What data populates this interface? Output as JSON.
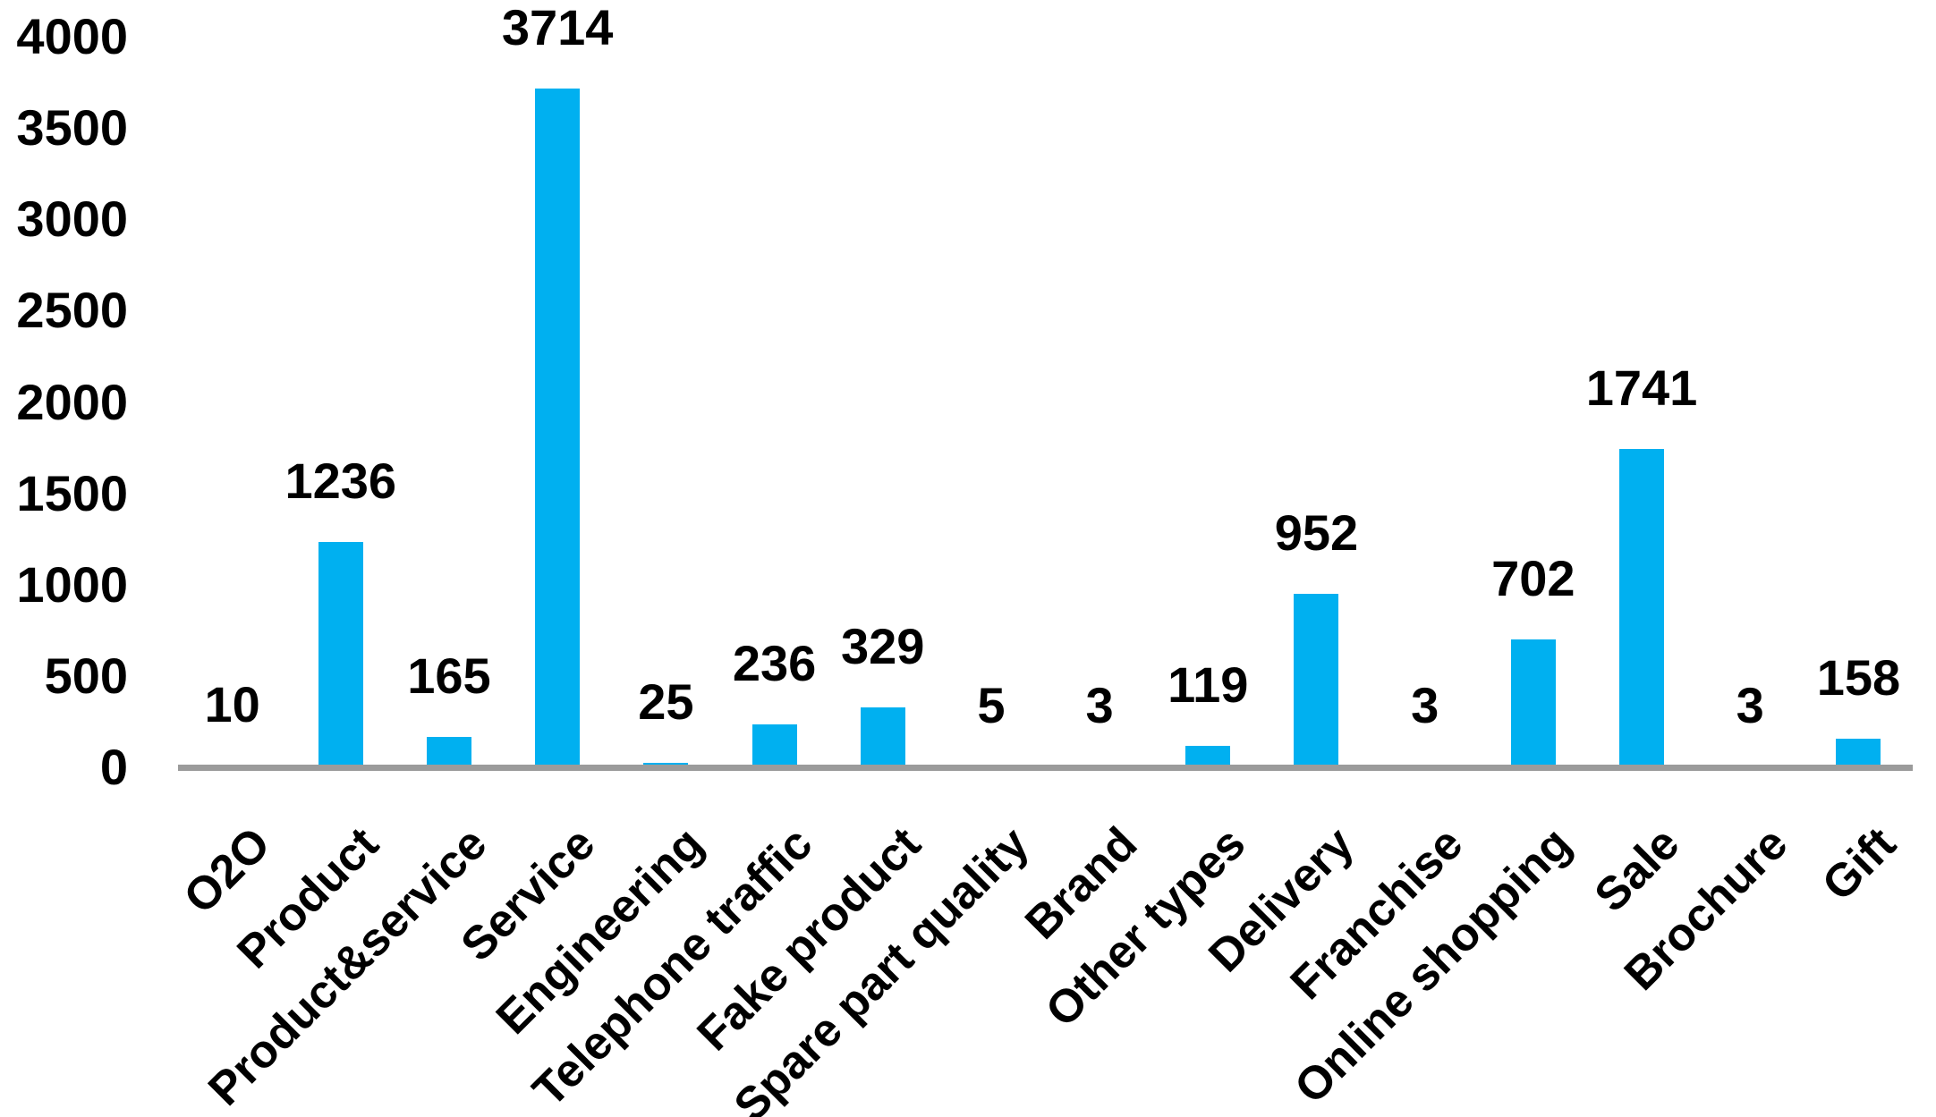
{
  "chart_data": {
    "type": "bar",
    "title": "",
    "xlabel": "",
    "ylabel": "",
    "categories": [
      "O2O",
      "Product",
      "Product&service",
      "Service",
      "Engineering",
      "Telephone traffic",
      "Fake product",
      "Spare part quality",
      "Brand",
      "Other types",
      "Delivery",
      "Franchise",
      "Online shopping",
      "Sale",
      "Brochure",
      "Gift"
    ],
    "values": [
      10,
      1236,
      165,
      3714,
      25,
      236,
      329,
      5,
      3,
      119,
      952,
      3,
      702,
      1741,
      3,
      158
    ],
    "yticks": [
      0,
      500,
      1000,
      1500,
      2000,
      2500,
      3000,
      3500,
      4000
    ],
    "ylim": [
      0,
      4000
    ],
    "grid": false,
    "legend": "none",
    "data_labels": "outside-end",
    "category_label_rotation_deg": 45,
    "colors": {
      "bar": "#00B0F0",
      "axis_line": "#9B9B9B",
      "text": "#000000"
    }
  }
}
